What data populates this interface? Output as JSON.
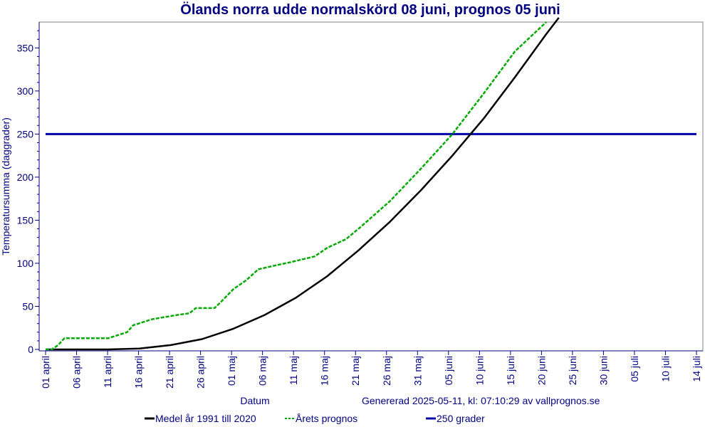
{
  "chart_data": {
    "type": "line",
    "title": "Ölands norra udde normalskörd 08 juni, prognos 05 juni",
    "xlabel": "Datum",
    "ylabel": "Temperatursumma (daggrader)",
    "footer": "Genererad 2025-05-11, kl: 07:10:29 av vallprognos.se",
    "x_ticks": [
      "01 april",
      "06 april",
      "11 april",
      "16 april",
      "21 april",
      "26 april",
      "01 maj",
      "06 maj",
      "11 maj",
      "16 maj",
      "21 maj",
      "26 maj",
      "31 maj",
      "05 juni",
      "10 juni",
      "15 juni",
      "20 juni",
      "25 juni",
      "30 juni",
      "05 juli",
      "10 juli",
      "14 juli"
    ],
    "xlim": [
      "2025-04-01",
      "2025-07-14"
    ],
    "y_ticks": [
      0,
      50,
      100,
      150,
      200,
      250,
      300,
      350
    ],
    "ylim": [
      0,
      380
    ],
    "grid": false,
    "legend_placement": "bottom",
    "series": [
      {
        "name": "Medel år 1991 till 2020",
        "color": "#000000",
        "style": "solid",
        "points": [
          [
            "2025-04-01",
            0
          ],
          [
            "2025-04-06",
            0
          ],
          [
            "2025-04-11",
            0
          ],
          [
            "2025-04-16",
            1
          ],
          [
            "2025-04-21",
            5
          ],
          [
            "2025-04-26",
            12
          ],
          [
            "2025-05-01",
            24
          ],
          [
            "2025-05-06",
            40
          ],
          [
            "2025-05-11",
            60
          ],
          [
            "2025-05-16",
            85
          ],
          [
            "2025-05-21",
            115
          ],
          [
            "2025-05-26",
            148
          ],
          [
            "2025-05-31",
            185
          ],
          [
            "2025-06-05",
            225
          ],
          [
            "2025-06-10",
            268
          ],
          [
            "2025-06-15",
            316
          ],
          [
            "2025-06-20",
            366
          ],
          [
            "2025-06-22",
            385
          ]
        ]
      },
      {
        "name": "Årets prognos",
        "color": "#00aa00",
        "style": "dashed",
        "points": [
          [
            "2025-04-01",
            0
          ],
          [
            "2025-04-02",
            0
          ],
          [
            "2025-04-03",
            5
          ],
          [
            "2025-04-04",
            13
          ],
          [
            "2025-04-11",
            13
          ],
          [
            "2025-04-14",
            20
          ],
          [
            "2025-04-15",
            28
          ],
          [
            "2025-04-18",
            35
          ],
          [
            "2025-04-22",
            40
          ],
          [
            "2025-04-24",
            42
          ],
          [
            "2025-04-25",
            48
          ],
          [
            "2025-04-28",
            48
          ],
          [
            "2025-04-29",
            55
          ],
          [
            "2025-05-01",
            70
          ],
          [
            "2025-05-03",
            80
          ],
          [
            "2025-05-05",
            93
          ],
          [
            "2025-05-08",
            98
          ],
          [
            "2025-05-10",
            101
          ],
          [
            "2025-05-14",
            108
          ],
          [
            "2025-05-16",
            118
          ],
          [
            "2025-05-19",
            128
          ],
          [
            "2025-05-21",
            140
          ],
          [
            "2025-05-26",
            172
          ],
          [
            "2025-05-31",
            210
          ],
          [
            "2025-06-05",
            250
          ],
          [
            "2025-06-10",
            297
          ],
          [
            "2025-06-15",
            346
          ],
          [
            "2025-06-20",
            380
          ]
        ]
      },
      {
        "name": "250 grader",
        "color": "#0000aa",
        "style": "solid",
        "points": [
          [
            "2025-04-01",
            250
          ],
          [
            "2025-07-14",
            250
          ]
        ]
      }
    ]
  }
}
